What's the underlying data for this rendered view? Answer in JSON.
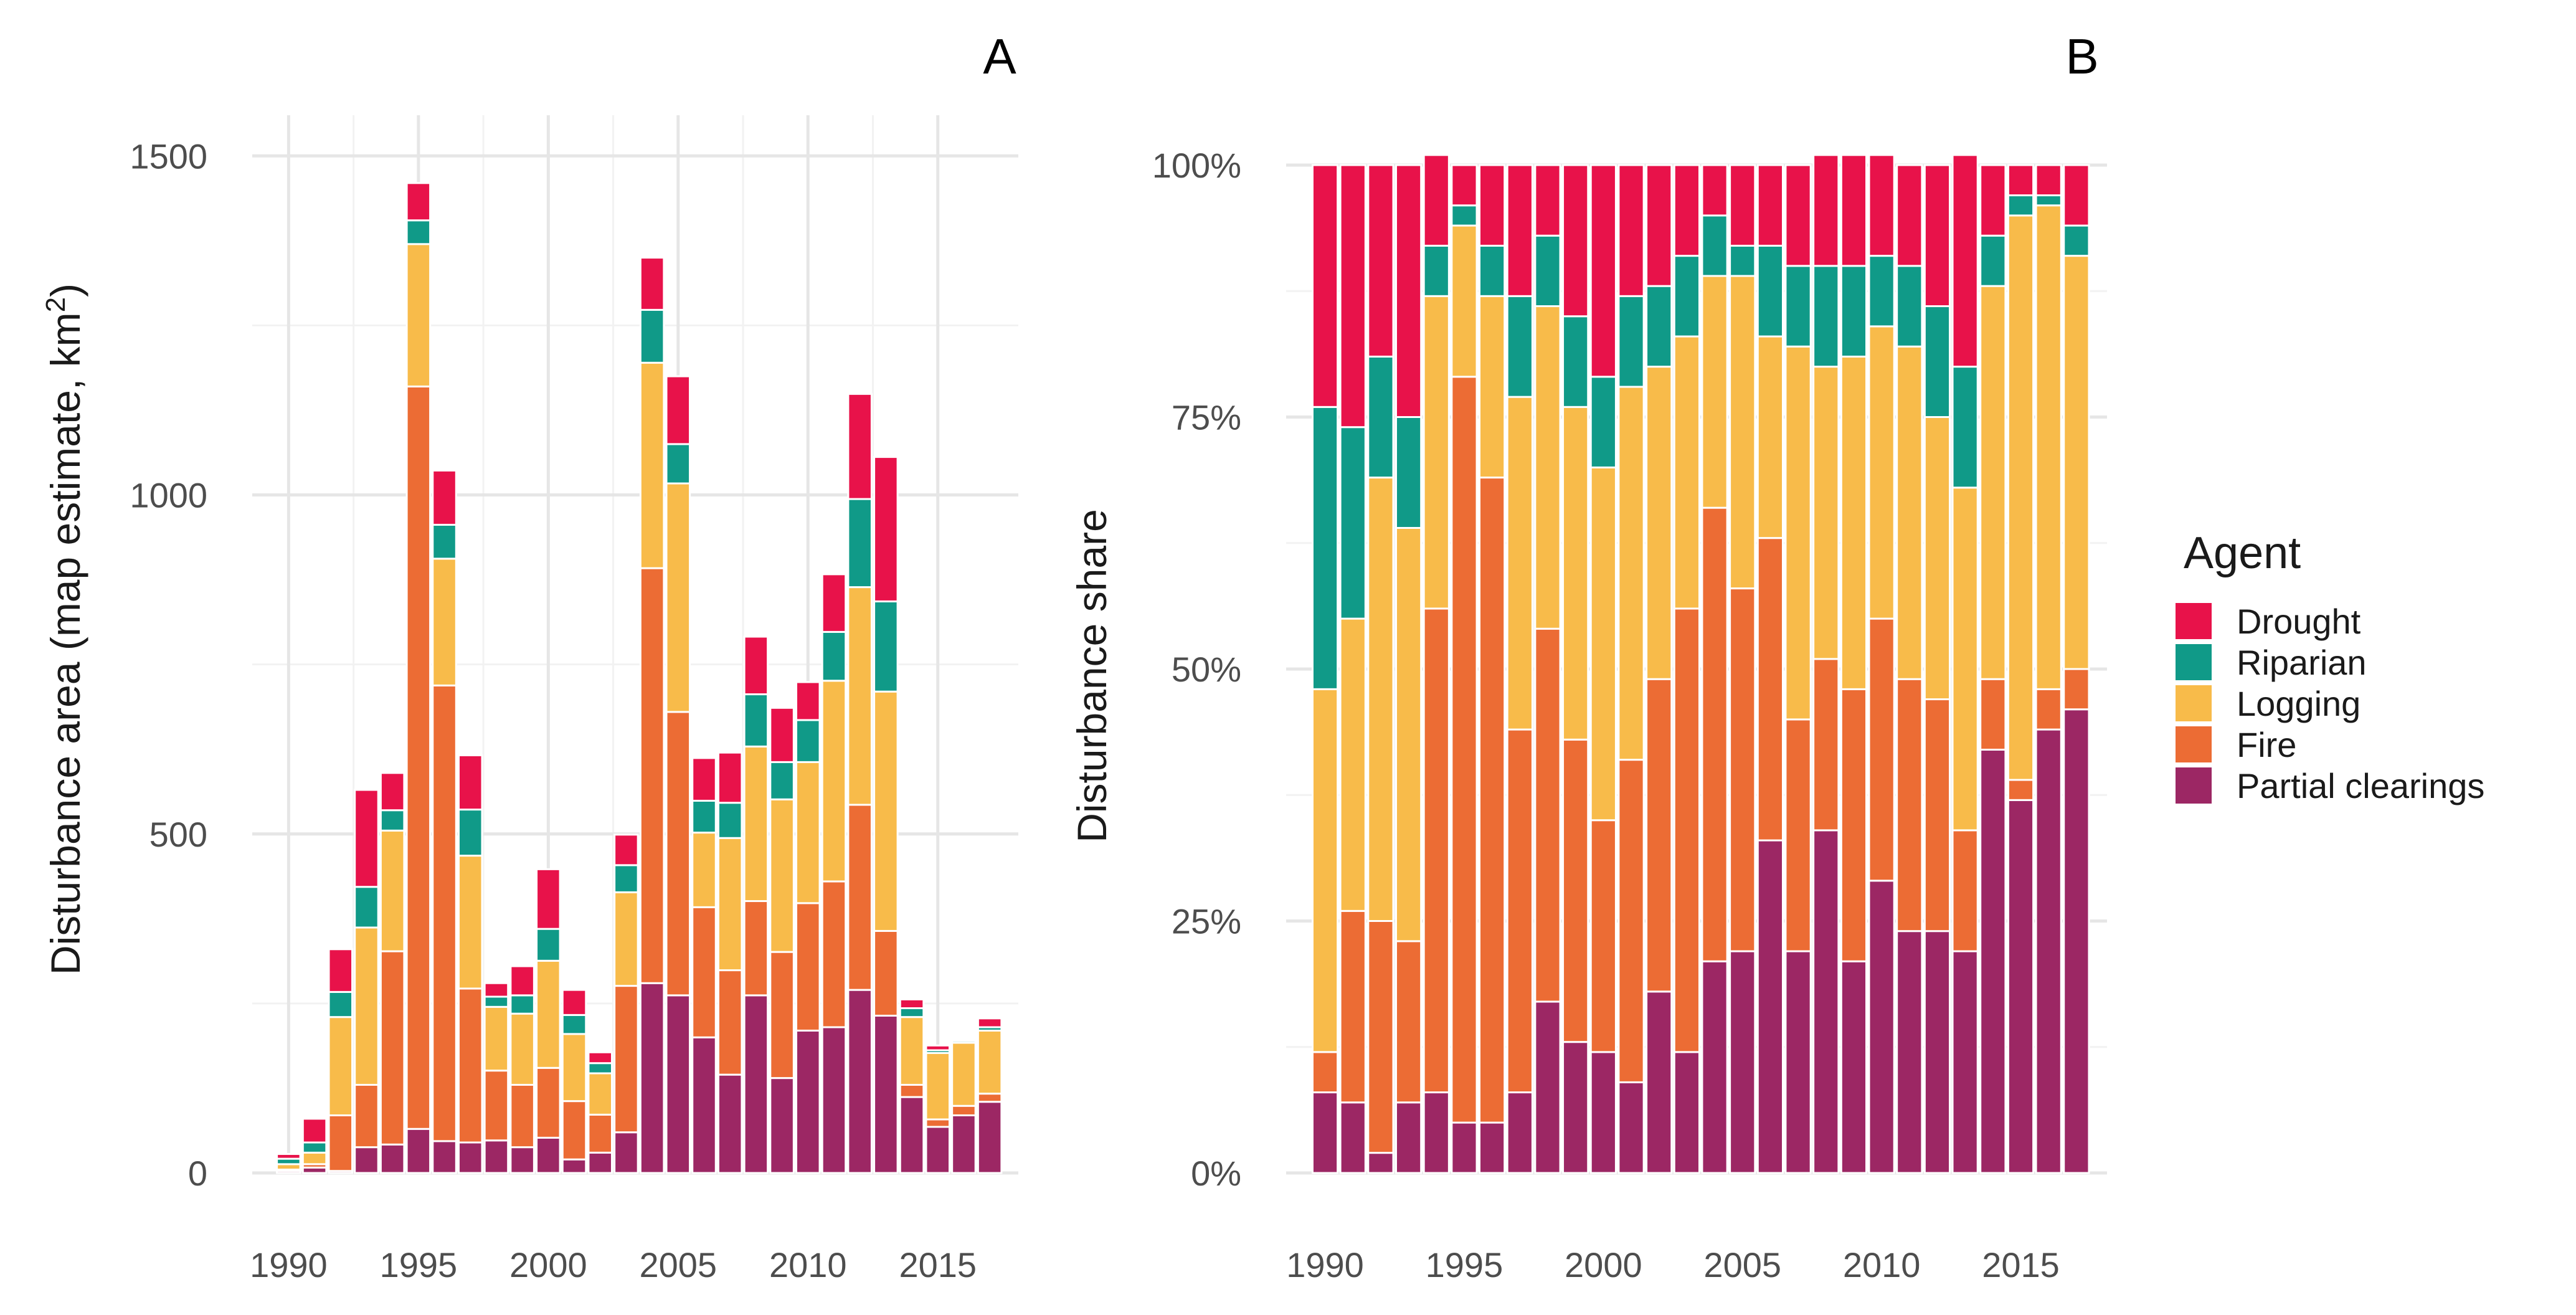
{
  "chart_data": [
    {
      "panel": "A",
      "type": "bar",
      "stacked": true,
      "ylabel": "Disturbance area (map estimate, km",
      "ylabel_superscript": "2",
      "ylabel_close": ")",
      "xlabel": "",
      "ylim": [
        0,
        1560
      ],
      "xlim": [
        1988.6,
        2018.1
      ],
      "yticks": [
        0,
        500,
        1000,
        1500
      ],
      "ytick_labels": [
        "0",
        "500",
        "1000",
        "1500"
      ],
      "xticks": [
        1990,
        1995,
        2000,
        2005,
        2010,
        2015
      ],
      "xtick_labels": [
        "1990",
        "1995",
        "2000",
        "2005",
        "2010",
        "2015"
      ],
      "categories": [
        1990,
        1991,
        1992,
        1993,
        1994,
        1995,
        1996,
        1997,
        1998,
        1999,
        2000,
        2001,
        2002,
        2003,
        2004,
        2005,
        2006,
        2007,
        2008,
        2009,
        2010,
        2011,
        2012,
        2013,
        2014,
        2015,
        2016,
        2017
      ],
      "series": [
        {
          "name": "Partial clearings",
          "values": [
            3,
            8,
            3,
            38,
            42,
            65,
            47,
            45,
            48,
            38,
            52,
            20,
            30,
            60,
            280,
            262,
            200,
            145,
            262,
            140,
            210,
            215,
            270,
            232,
            112,
            68,
            85,
            105
          ]
        },
        {
          "name": "Fire",
          "values": [
            2,
            5,
            82,
            92,
            285,
            1095,
            672,
            227,
            103,
            92,
            103,
            86,
            56,
            216,
            612,
            418,
            192,
            154,
            139,
            186,
            188,
            215,
            273,
            125,
            18,
            11,
            14,
            12
          ]
        },
        {
          "name": "Logging",
          "values": [
            8,
            17,
            145,
            232,
            178,
            210,
            187,
            196,
            94,
            105,
            158,
            99,
            61,
            138,
            303,
            337,
            110,
            195,
            228,
            225,
            208,
            296,
            321,
            353,
            100,
            98,
            93,
            93
          ]
        },
        {
          "name": "Riparian",
          "values": [
            8,
            15,
            37,
            60,
            30,
            35,
            50,
            68,
            15,
            27,
            47,
            28,
            15,
            40,
            78,
            58,
            47,
            52,
            77,
            55,
            62,
            72,
            130,
            133,
            13,
            4,
            3,
            5
          ]
        },
        {
          "name": "Drought",
          "values": [
            7,
            35,
            63,
            143,
            55,
            55,
            80,
            80,
            20,
            43,
            88,
            37,
            16,
            45,
            77,
            100,
            63,
            74,
            85,
            80,
            56,
            85,
            155,
            213,
            13,
            7,
            2,
            13
          ]
        }
      ]
    },
    {
      "panel": "B",
      "type": "bar",
      "stacked": true,
      "ylabel": "Disturbance share",
      "xlabel": "",
      "ylim": [
        0,
        1
      ],
      "xlim": [
        1988.6,
        2018.1
      ],
      "yticks": [
        0,
        0.25,
        0.5,
        0.75,
        1.0
      ],
      "ytick_labels": [
        "0%",
        "25%",
        "50%",
        "75%",
        "100%"
      ],
      "xticks": [
        1990,
        1995,
        2000,
        2005,
        2010,
        2015
      ],
      "xtick_labels": [
        "1990",
        "1995",
        "2000",
        "2005",
        "2010",
        "2015"
      ],
      "categories": [
        1990,
        1991,
        1992,
        1993,
        1994,
        1995,
        1996,
        1997,
        1998,
        1999,
        2000,
        2001,
        2002,
        2003,
        2004,
        2005,
        2006,
        2007,
        2008,
        2009,
        2010,
        2011,
        2012,
        2013,
        2014,
        2015,
        2016,
        2017
      ],
      "series": [
        {
          "name": "Partial clearings",
          "values": [
            0.08,
            0.07,
            0.02,
            0.07,
            0.08,
            0.05,
            0.05,
            0.08,
            0.17,
            0.13,
            0.12,
            0.09,
            0.18,
            0.12,
            0.21,
            0.22,
            0.33,
            0.22,
            0.34,
            0.21,
            0.29,
            0.24,
            0.24,
            0.22,
            0.42,
            0.37,
            0.44,
            0.46
          ]
        },
        {
          "name": "Fire",
          "values": [
            0.04,
            0.19,
            0.23,
            0.16,
            0.48,
            0.74,
            0.64,
            0.36,
            0.37,
            0.3,
            0.23,
            0.32,
            0.31,
            0.44,
            0.45,
            0.36,
            0.3,
            0.23,
            0.17,
            0.27,
            0.26,
            0.25,
            0.23,
            0.12,
            0.07,
            0.02,
            0.04,
            0.04
          ]
        },
        {
          "name": "Logging",
          "values": [
            0.36,
            0.29,
            0.44,
            0.41,
            0.31,
            0.15,
            0.18,
            0.33,
            0.32,
            0.33,
            0.35,
            0.37,
            0.31,
            0.27,
            0.23,
            0.31,
            0.2,
            0.37,
            0.29,
            0.33,
            0.29,
            0.33,
            0.28,
            0.34,
            0.39,
            0.56,
            0.48,
            0.41
          ]
        },
        {
          "name": "Riparian",
          "values": [
            0.28,
            0.19,
            0.12,
            0.11,
            0.05,
            0.02,
            0.05,
            0.1,
            0.07,
            0.09,
            0.09,
            0.09,
            0.08,
            0.08,
            0.06,
            0.03,
            0.09,
            0.08,
            0.1,
            0.09,
            0.07,
            0.08,
            0.11,
            0.12,
            0.05,
            0.02,
            0.01,
            0.03
          ]
        },
        {
          "name": "Drought",
          "values": [
            0.24,
            0.26,
            0.19,
            0.25,
            0.09,
            0.04,
            0.08,
            0.13,
            0.07,
            0.15,
            0.21,
            0.13,
            0.12,
            0.09,
            0.05,
            0.08,
            0.08,
            0.1,
            0.11,
            0.11,
            0.1,
            0.1,
            0.14,
            0.21,
            0.07,
            0.03,
            0.03,
            0.06
          ]
        }
      ]
    }
  ],
  "legend": {
    "title": "Agent",
    "items": [
      {
        "name": "Drought",
        "color": "#e8124a"
      },
      {
        "name": "Riparian",
        "color": "#109a88"
      },
      {
        "name": "Logging",
        "color": "#f8bb4a"
      },
      {
        "name": "Fire",
        "color": "#ec6c34"
      },
      {
        "name": "Partial clearings",
        "color": "#9c2764"
      }
    ]
  },
  "colors": {
    "Drought": "#e8124a",
    "Riparian": "#109a88",
    "Logging": "#f8bb4a",
    "Fire": "#ec6c34",
    "Partial clearings": "#9c2764"
  }
}
